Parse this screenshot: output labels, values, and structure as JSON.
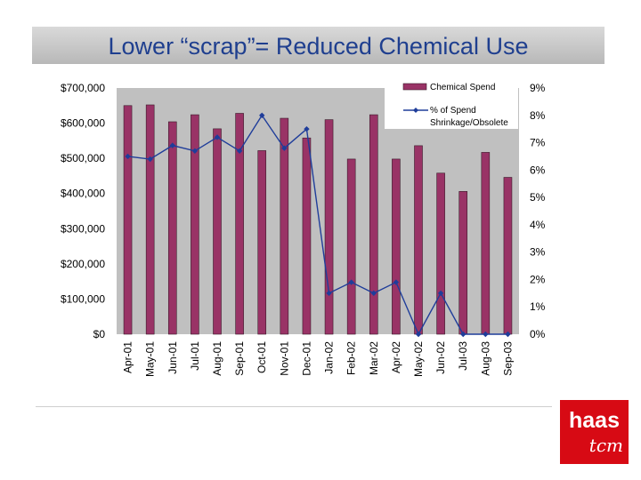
{
  "slide": {
    "title": "Lower “scrap”= Reduced Chemical Use",
    "logo_primary": "haas",
    "logo_secondary": "tcm"
  },
  "colors": {
    "bar": "#993366",
    "line": "#1f3d9a",
    "plot_bg": "#c0c0c0",
    "title": "#1f3f8f",
    "logo_bg": "#d70a14"
  },
  "chart_data": {
    "type": "bar+line",
    "title": "",
    "categories": [
      "Apr-01",
      "May-01",
      "Jun-01",
      "Jul-01",
      "Aug-01",
      "Sep-01",
      "Oct-01",
      "Nov-01",
      "Dec-01",
      "Jan-02",
      "Feb-02",
      "Mar-02",
      "Apr-02",
      "May-02",
      "Jun-02",
      "Jul-03",
      "Aug-03",
      "Sep-03"
    ],
    "series": [
      {
        "name": "Chemical Spend",
        "type": "bar",
        "axis": "left",
        "values": [
          650000,
          652000,
          604000,
          624000,
          584000,
          628000,
          522000,
          614000,
          558000,
          610000,
          498000,
          624000,
          498000,
          536000,
          458000,
          406000,
          517000,
          446000
        ]
      },
      {
        "name": "% of Spend Shrinkage/Obsolete",
        "type": "line",
        "axis": "right",
        "values": [
          6.5,
          6.4,
          6.9,
          6.7,
          7.2,
          6.7,
          8.0,
          6.8,
          7.5,
          1.5,
          1.9,
          1.5,
          1.9,
          0.0,
          1.5,
          0.0,
          0.0,
          0.0
        ]
      }
    ],
    "y_left": {
      "min": 0,
      "max": 700000,
      "ticks": [
        0,
        100000,
        200000,
        300000,
        400000,
        500000,
        600000,
        700000
      ],
      "tick_labels": [
        "$0",
        "$100,000",
        "$200,000",
        "$300,000",
        "$400,000",
        "$500,000",
        "$600,000",
        "$700,000"
      ]
    },
    "y_right": {
      "min": 0,
      "max": 9,
      "ticks": [
        0,
        1,
        2,
        3,
        4,
        5,
        6,
        7,
        8,
        9
      ],
      "tick_labels": [
        "0%",
        "1%",
        "2%",
        "3%",
        "4%",
        "5%",
        "6%",
        "7%",
        "8%",
        "9%"
      ]
    },
    "legend": {
      "position": "top-right",
      "entries": [
        "Chemical Spend",
        "% of Spend",
        "Shrinkage/Obsolete"
      ]
    },
    "grid": false
  }
}
